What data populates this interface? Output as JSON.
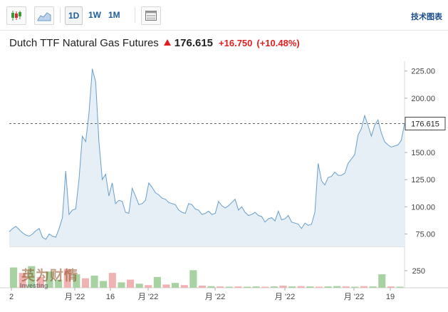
{
  "toolbar": {
    "candles_icon": "candlestick-icon",
    "area_icon": "area-chart-icon",
    "ranges": [
      {
        "label": "1D",
        "active": true
      },
      {
        "label": "1W",
        "active": false
      },
      {
        "label": "1M",
        "active": false
      }
    ],
    "table_icon": "table-icon",
    "tech_chart_label": "技术图表"
  },
  "header": {
    "title": "Dutch TTF Natural Gas Futures",
    "price": "176.615",
    "change": "+16.750",
    "change_pct": "(+10.48%)",
    "direction_icon": "up-arrow-icon"
  },
  "watermark": {
    "cn": "英为财情",
    "en": "Investing"
  },
  "colors": {
    "line": "#6a9fc9",
    "fill": "#e6eef6",
    "up": "#e02020",
    "vol_up": "#f0b3b3",
    "vol_down": "#a8d2a2"
  },
  "chart_data": {
    "type": "area",
    "y_ticks": [
      "225.00",
      "200.00",
      "175.00",
      "150.00",
      "125.00",
      "100.00",
      "75.00"
    ],
    "ylim": [
      63.5,
      234
    ],
    "last_price_label": "176.615",
    "x_tick_labels": [
      "2",
      "月 '22",
      "16",
      "月 '22",
      "月 '22",
      "月 '22",
      "月 '22",
      "19"
    ],
    "volume_tick": "250",
    "values": [
      77,
      80,
      82,
      79,
      76,
      74,
      73,
      75,
      78,
      80,
      72,
      70,
      75,
      73,
      72,
      80,
      90,
      133,
      93,
      97,
      98,
      125,
      165,
      160,
      186,
      227,
      215,
      160,
      125,
      130,
      110,
      122,
      103,
      106,
      105,
      95,
      94,
      117,
      110,
      102,
      103,
      106,
      122,
      118,
      113,
      111,
      108,
      107,
      104,
      103,
      102,
      97,
      95,
      94,
      103,
      102,
      98,
      97,
      93,
      94,
      96,
      93,
      94,
      105,
      101,
      99,
      101,
      104,
      107,
      97,
      100,
      95,
      92,
      93,
      95,
      92,
      91,
      86,
      89,
      90,
      87,
      96,
      88,
      89,
      92,
      86,
      85,
      84,
      80,
      85,
      83,
      84,
      95,
      140,
      124,
      120,
      127,
      128,
      132,
      129,
      129,
      131,
      140,
      144,
      148,
      166,
      172,
      184,
      175,
      165,
      175,
      180,
      168,
      160,
      157,
      155,
      156,
      157,
      161,
      176.6
    ],
    "volume": [
      {
        "v": 0.75,
        "d": "down"
      },
      {
        "v": 0.55,
        "d": "up"
      },
      {
        "v": 0.8,
        "d": "down"
      },
      {
        "v": 0.4,
        "d": "up"
      },
      {
        "v": 0.6,
        "d": "down"
      },
      {
        "v": 0.3,
        "d": "down"
      },
      {
        "v": 0.7,
        "d": "up"
      },
      {
        "v": 0.5,
        "d": "down"
      },
      {
        "v": 0.35,
        "d": "up"
      },
      {
        "v": 0.45,
        "d": "down"
      },
      {
        "v": 0.25,
        "d": "down"
      },
      {
        "v": 0.55,
        "d": "up"
      },
      {
        "v": 0.2,
        "d": "down"
      },
      {
        "v": 0.3,
        "d": "up"
      },
      {
        "v": 0.15,
        "d": "down"
      },
      {
        "v": 0.1,
        "d": "up"
      },
      {
        "v": 0.4,
        "d": "down"
      },
      {
        "v": 0.12,
        "d": "up"
      },
      {
        "v": 0.18,
        "d": "down"
      },
      {
        "v": 0.1,
        "d": "up"
      },
      {
        "v": 0.65,
        "d": "down"
      },
      {
        "v": 0.08,
        "d": "up"
      },
      {
        "v": 0.06,
        "d": "down"
      },
      {
        "v": 0.05,
        "d": "up"
      },
      {
        "v": 0.04,
        "d": "down"
      },
      {
        "v": 0.05,
        "d": "up"
      },
      {
        "v": 0.04,
        "d": "down"
      },
      {
        "v": 0.05,
        "d": "down"
      },
      {
        "v": 0.04,
        "d": "up"
      },
      {
        "v": 0.05,
        "d": "down"
      },
      {
        "v": 0.08,
        "d": "up"
      },
      {
        "v": 0.05,
        "d": "down"
      },
      {
        "v": 0.06,
        "d": "up"
      },
      {
        "v": 0.05,
        "d": "down"
      },
      {
        "v": 0.04,
        "d": "up"
      },
      {
        "v": 0.05,
        "d": "down"
      },
      {
        "v": 0.06,
        "d": "down"
      },
      {
        "v": 0.05,
        "d": "up"
      },
      {
        "v": 0.04,
        "d": "down"
      },
      {
        "v": 0.06,
        "d": "up"
      },
      {
        "v": 0.05,
        "d": "down"
      },
      {
        "v": 0.5,
        "d": "down"
      },
      {
        "v": 0.05,
        "d": "up"
      },
      {
        "v": 0.04,
        "d": "down"
      }
    ]
  }
}
